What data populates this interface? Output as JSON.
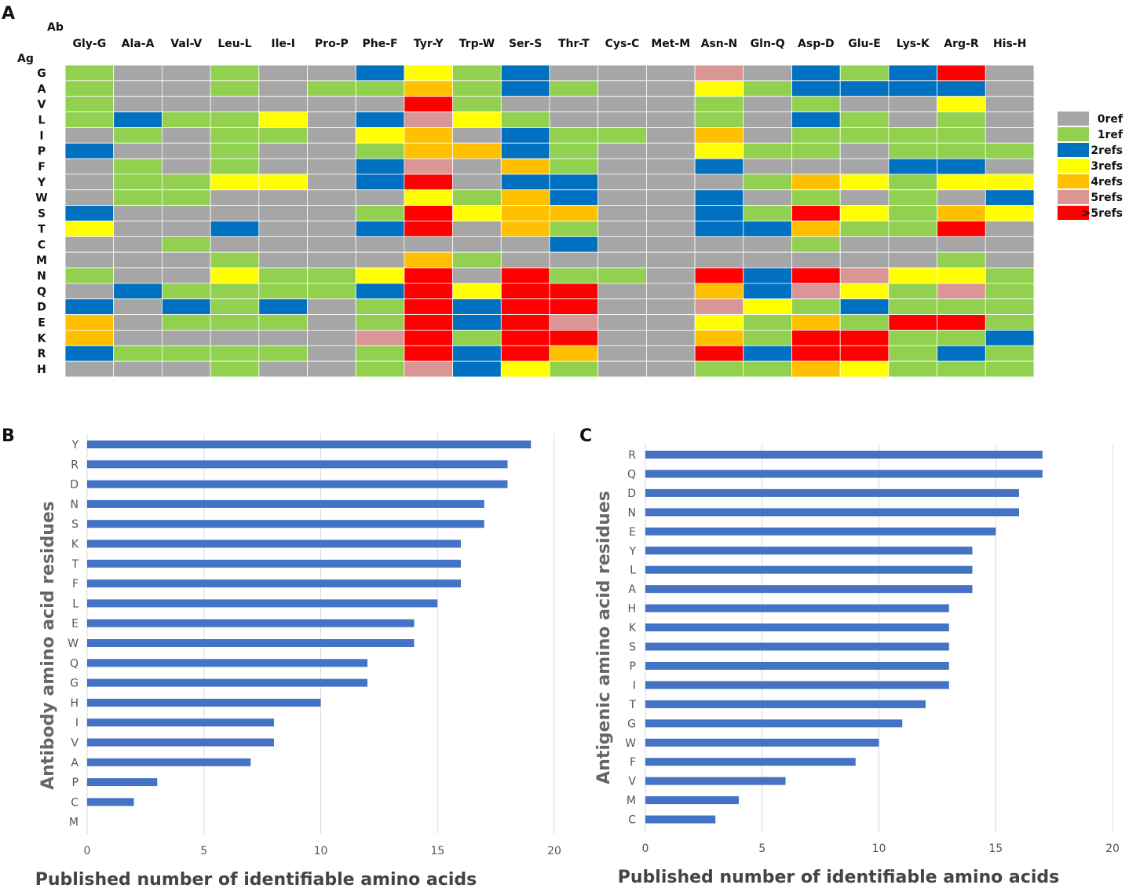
{
  "panels": {
    "a": "A",
    "b": "B",
    "c": "C"
  },
  "heatmap": {
    "col_axis_label": "Ab",
    "row_axis_label": "Ag",
    "columns": [
      "Gly-G",
      "Ala-A",
      "Val-V",
      "Leu-L",
      "Ile-I",
      "Pro-P",
      "Phe-F",
      "Tyr-Y",
      "Trp-W",
      "Ser-S",
      "Thr-T",
      "Cys-C",
      "Met-M",
      "Asn-N",
      "Gln-Q",
      "Asp-D",
      "Glu-E",
      "Lys-K",
      "Arg-R",
      "His-H"
    ],
    "rows": [
      "G",
      "A",
      "V",
      "L",
      "I",
      "P",
      "F",
      "Y",
      "W",
      "S",
      "T",
      "C",
      "M",
      "N",
      "Q",
      "D",
      "E",
      "K",
      "R",
      "H"
    ],
    "levels": [
      {
        "label": "0ref",
        "color": "#a6a6a6"
      },
      {
        "label": "1ref",
        "color": "#92d050"
      },
      {
        "label": "2refs",
        "color": "#0070c0"
      },
      {
        "label": "3refs",
        "color": "#ffff00"
      },
      {
        "label": "4refs",
        "color": "#ffc000"
      },
      {
        "label": "5refs",
        "color": "#da9694"
      },
      {
        "label": ">5refs",
        "color": "#ff0000"
      }
    ],
    "values": [
      [
        1,
        0,
        0,
        1,
        0,
        0,
        2,
        3,
        1,
        2,
        0,
        0,
        0,
        5,
        0,
        2,
        1,
        2,
        6,
        0
      ],
      [
        1,
        0,
        0,
        1,
        0,
        1,
        1,
        4,
        1,
        2,
        1,
        0,
        0,
        3,
        1,
        2,
        2,
        2,
        2,
        0
      ],
      [
        1,
        0,
        0,
        0,
        0,
        0,
        0,
        6,
        1,
        0,
        0,
        0,
        0,
        1,
        0,
        1,
        0,
        0,
        3,
        0
      ],
      [
        1,
        2,
        1,
        1,
        3,
        0,
        2,
        5,
        3,
        1,
        0,
        0,
        0,
        1,
        0,
        2,
        1,
        0,
        1,
        0
      ],
      [
        0,
        1,
        0,
        1,
        1,
        0,
        3,
        4,
        0,
        2,
        1,
        1,
        0,
        4,
        0,
        1,
        1,
        1,
        1,
        0
      ],
      [
        2,
        0,
        0,
        1,
        0,
        0,
        1,
        4,
        4,
        2,
        1,
        0,
        0,
        3,
        1,
        1,
        0,
        1,
        1,
        1
      ],
      [
        0,
        1,
        0,
        1,
        0,
        0,
        2,
        5,
        0,
        4,
        1,
        0,
        0,
        2,
        0,
        0,
        0,
        2,
        2,
        0
      ],
      [
        0,
        1,
        1,
        3,
        3,
        0,
        2,
        6,
        0,
        2,
        2,
        0,
        0,
        0,
        1,
        4,
        3,
        1,
        3,
        3
      ],
      [
        0,
        1,
        1,
        0,
        0,
        0,
        0,
        3,
        1,
        4,
        2,
        0,
        0,
        2,
        0,
        1,
        0,
        1,
        0,
        2
      ],
      [
        2,
        0,
        0,
        0,
        0,
        0,
        1,
        6,
        3,
        4,
        4,
        0,
        0,
        2,
        1,
        6,
        3,
        1,
        4,
        3
      ],
      [
        3,
        0,
        0,
        2,
        0,
        0,
        2,
        6,
        0,
        4,
        1,
        0,
        0,
        2,
        2,
        4,
        1,
        1,
        6,
        0
      ],
      [
        0,
        0,
        1,
        0,
        0,
        0,
        0,
        0,
        0,
        0,
        2,
        0,
        0,
        0,
        0,
        1,
        0,
        0,
        0,
        0
      ],
      [
        0,
        0,
        0,
        1,
        0,
        0,
        0,
        4,
        1,
        0,
        0,
        0,
        0,
        0,
        0,
        0,
        0,
        0,
        1,
        0
      ],
      [
        1,
        0,
        0,
        3,
        1,
        1,
        3,
        6,
        0,
        6,
        1,
        1,
        0,
        6,
        2,
        6,
        5,
        3,
        3,
        1
      ],
      [
        0,
        2,
        1,
        1,
        1,
        1,
        2,
        6,
        3,
        6,
        6,
        0,
        0,
        4,
        2,
        5,
        3,
        1,
        5,
        1
      ],
      [
        2,
        0,
        2,
        1,
        2,
        0,
        1,
        6,
        2,
        6,
        6,
        0,
        0,
        5,
        3,
        1,
        2,
        1,
        1,
        1
      ],
      [
        4,
        0,
        1,
        1,
        1,
        0,
        1,
        6,
        2,
        6,
        5,
        0,
        0,
        3,
        1,
        4,
        1,
        6,
        6,
        1
      ],
      [
        4,
        0,
        0,
        0,
        0,
        0,
        5,
        6,
        1,
        6,
        6,
        0,
        0,
        4,
        1,
        6,
        6,
        1,
        1,
        2
      ],
      [
        2,
        1,
        1,
        1,
        1,
        0,
        1,
        6,
        2,
        6,
        4,
        0,
        0,
        6,
        2,
        6,
        6,
        1,
        2,
        1
      ],
      [
        0,
        0,
        0,
        1,
        0,
        0,
        1,
        5,
        2,
        3,
        1,
        0,
        0,
        1,
        1,
        4,
        3,
        1,
        1,
        1
      ]
    ]
  },
  "chart_data": [
    {
      "type": "bar",
      "orientation": "horizontal",
      "categories": [
        "Y",
        "R",
        "D",
        "N",
        "S",
        "K",
        "T",
        "F",
        "L",
        "E",
        "W",
        "Q",
        "G",
        "H",
        "I",
        "V",
        "A",
        "P",
        "C",
        "M"
      ],
      "values": [
        19,
        18,
        18,
        17,
        17,
        16,
        16,
        16,
        15,
        14,
        14,
        12,
        12,
        10,
        8,
        8,
        7,
        3,
        2,
        0
      ],
      "xlabel": "Published number of identifiable amino acids",
      "ylabel": "Antibody amino acid residues",
      "xlim": [
        0,
        20
      ],
      "xticks": [
        "0",
        "5",
        "10",
        "15",
        "20"
      ],
      "bar_color": "#4472c4"
    },
    {
      "type": "bar",
      "orientation": "horizontal",
      "categories": [
        "R",
        "Q",
        "D",
        "N",
        "E",
        "Y",
        "L",
        "A",
        "H",
        "K",
        "S",
        "P",
        "I",
        "T",
        "G",
        "W",
        "F",
        "V",
        "M",
        "C"
      ],
      "values": [
        17,
        17,
        16,
        16,
        15,
        14,
        14,
        14,
        13,
        13,
        13,
        13,
        13,
        12,
        11,
        10,
        9,
        6,
        4,
        3
      ],
      "xlabel": "Published number of identifiable amino acids",
      "ylabel": "Antigenic amino acid residues",
      "xlim": [
        0,
        20
      ],
      "xticks": [
        "0",
        "5",
        "10",
        "15",
        "20"
      ],
      "bar_color": "#4472c4"
    }
  ]
}
